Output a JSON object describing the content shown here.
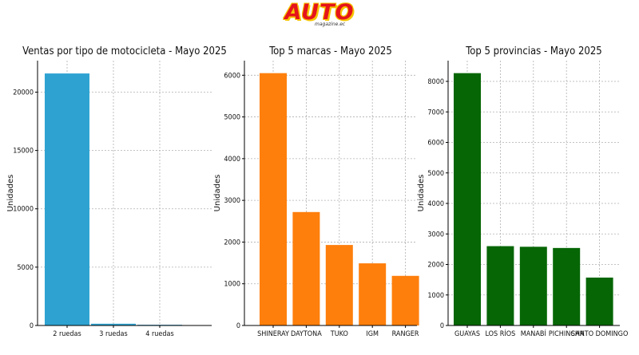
{
  "header": {
    "logo_text": "AUTO",
    "logo_subtext": "magazine.ec"
  },
  "chart_data": [
    {
      "type": "bar",
      "title": "Ventas por tipo de motocicleta - Mayo 2025",
      "ylabel": "Unidades",
      "xlabel": "",
      "categories": [
        "2 ruedas",
        "3 ruedas",
        "4 ruedas"
      ],
      "values": [
        21600,
        150,
        60
      ],
      "ylim": [
        0,
        22700
      ],
      "yticks": [
        0,
        5000,
        10000,
        15000,
        20000
      ],
      "color": "#2ea3d2",
      "grid": true
    },
    {
      "type": "bar",
      "title": "Top 5 marcas - Mayo 2025",
      "ylabel": "Unidades",
      "xlabel": "",
      "categories": [
        "SHINERAY",
        "DAYTONA",
        "TUKO",
        "IGM",
        "RANGER"
      ],
      "values": [
        6050,
        2720,
        1930,
        1490,
        1190
      ],
      "ylim": [
        0,
        6350
      ],
      "yticks": [
        0,
        1000,
        2000,
        3000,
        4000,
        5000,
        6000
      ],
      "color": "#fe7f0c",
      "grid": true
    },
    {
      "type": "bar",
      "title": "Top 5 provincias - Mayo 2025",
      "ylabel": "Unidades",
      "xlabel": "",
      "categories": [
        "GUAYAS",
        "LOS RÍOS",
        "MANABÍ",
        "PICHINCHA",
        "SANTO DOMINGO"
      ],
      "values": [
        8270,
        2600,
        2580,
        2540,
        1570
      ],
      "ylim": [
        0,
        8680
      ],
      "yticks": [
        0,
        1000,
        2000,
        3000,
        4000,
        5000,
        6000,
        7000,
        8000
      ],
      "color": "#066605",
      "grid": true
    }
  ]
}
